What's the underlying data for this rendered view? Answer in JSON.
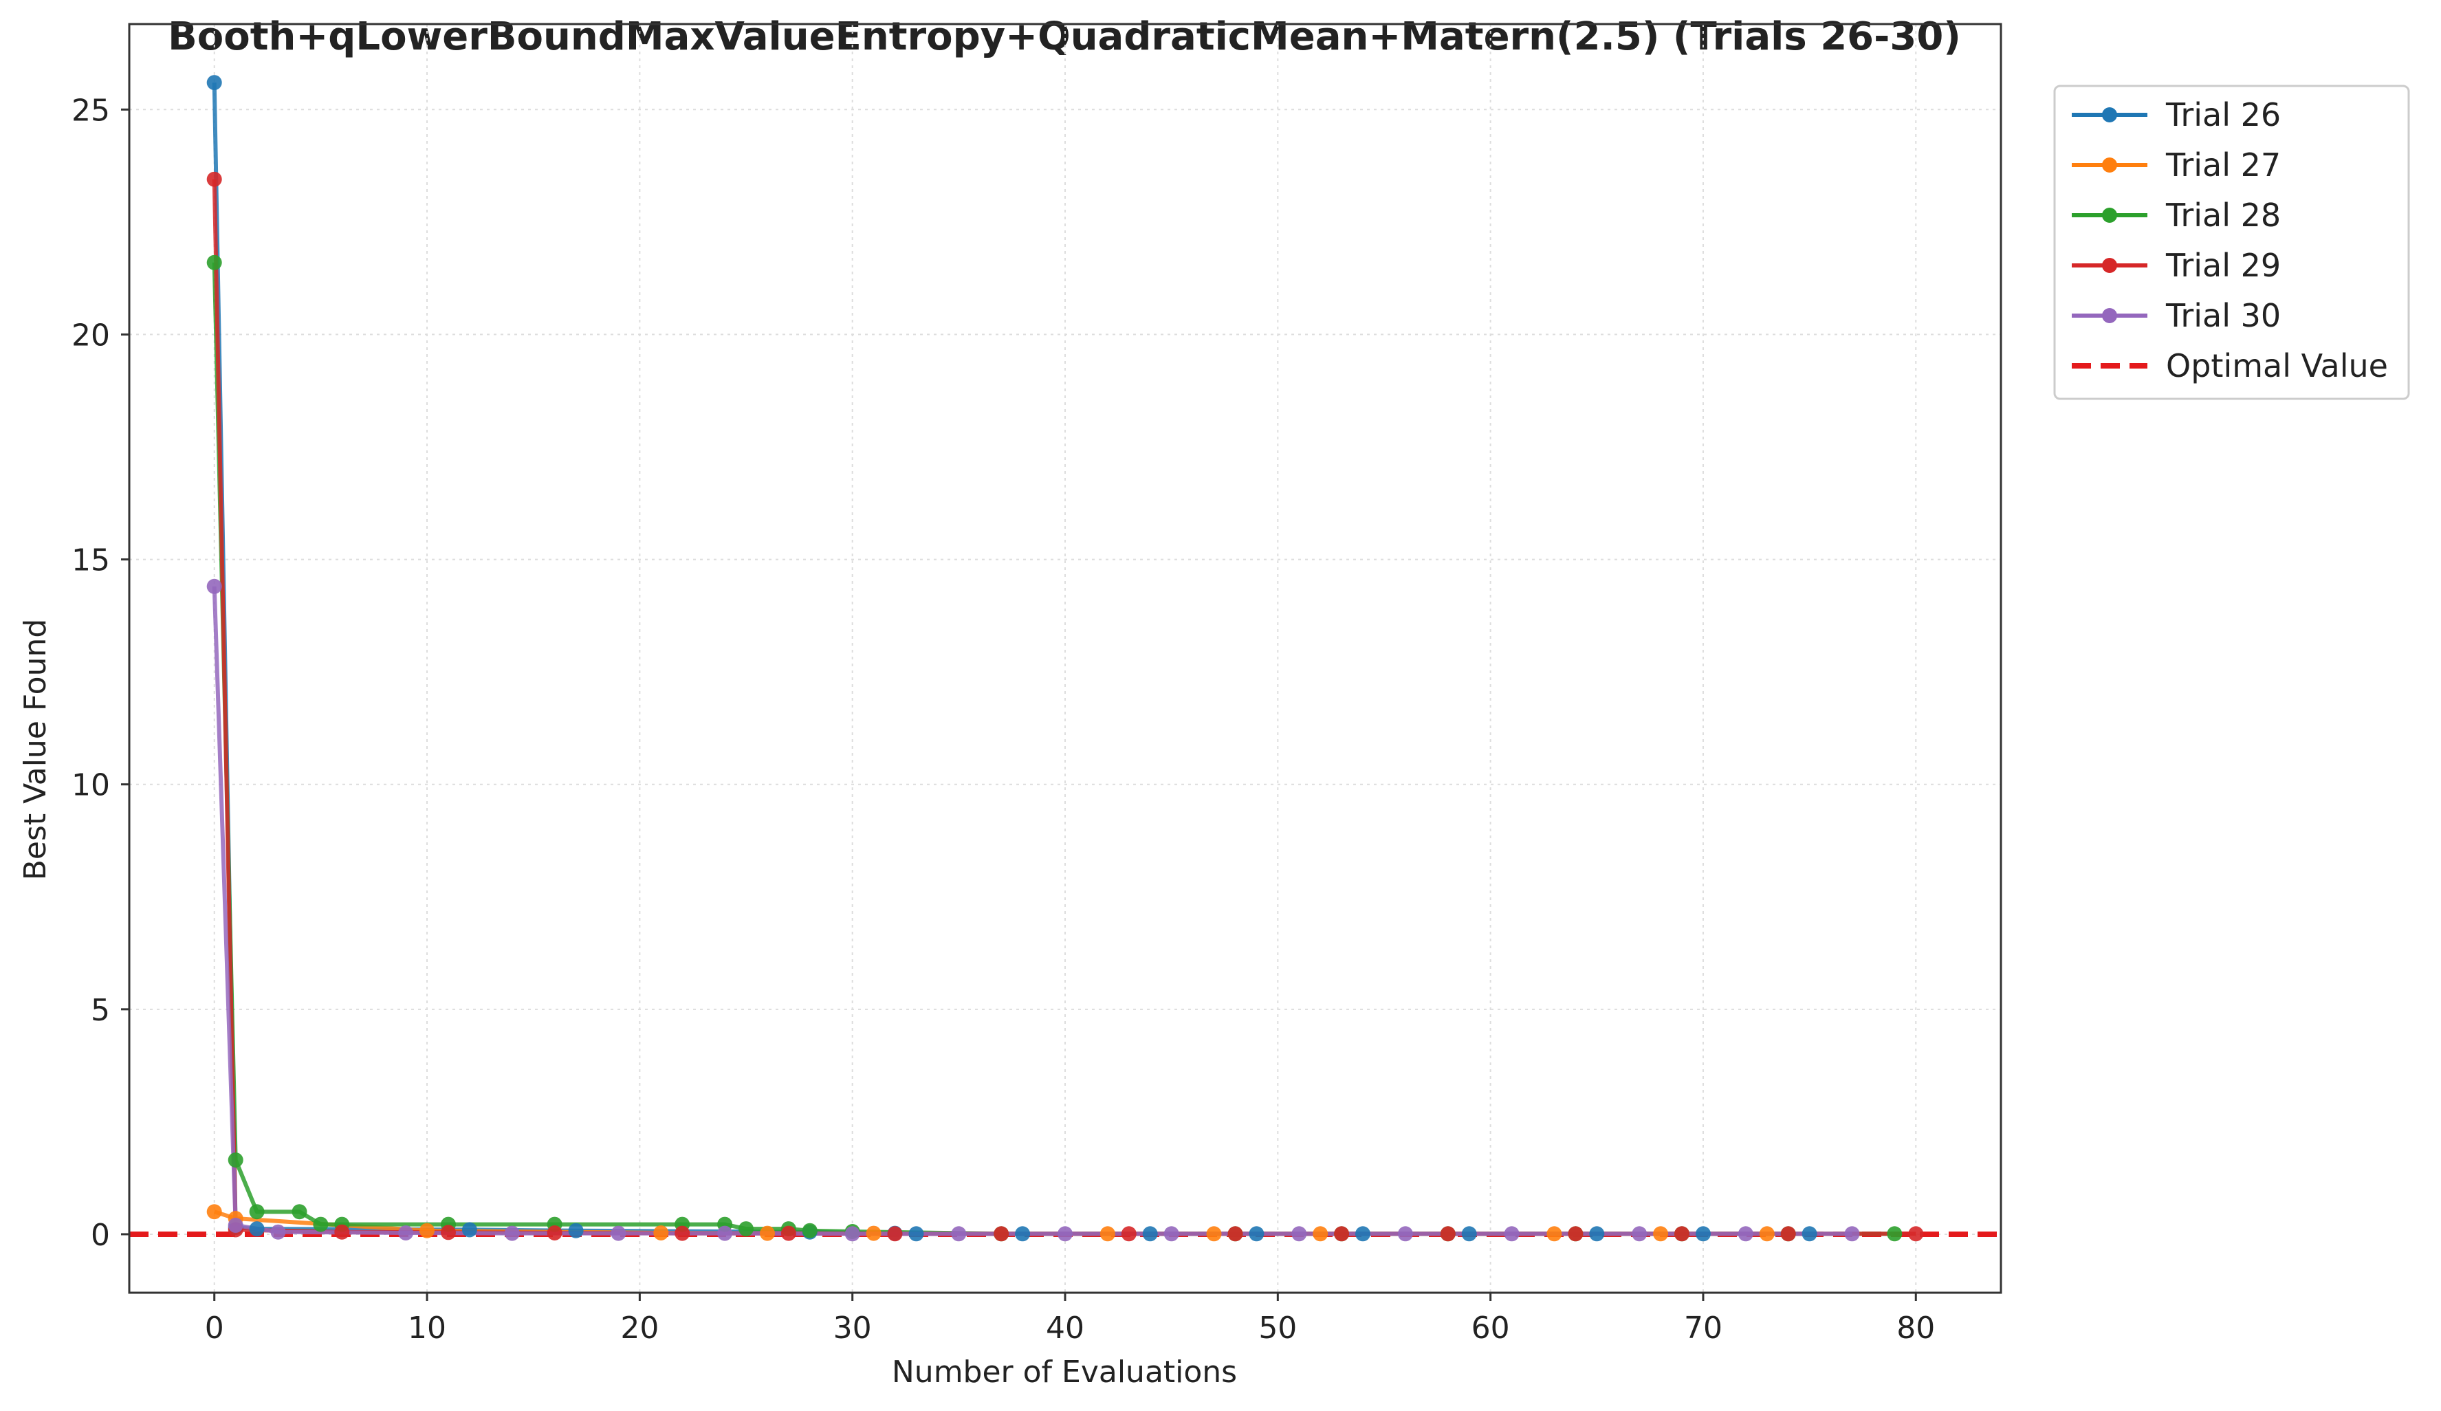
{
  "chart_data": {
    "type": "line",
    "title": "Booth+qLowerBoundMaxValueEntropy+QuadraticMean+Matern(2.5) (Trials 26-30)",
    "xlabel": "Number of Evaluations",
    "ylabel": "Best Value Found",
    "xlim": [
      -4,
      84
    ],
    "ylim": [
      -1.3,
      26.9
    ],
    "xticks": [
      0,
      10,
      20,
      30,
      40,
      50,
      60,
      70,
      80
    ],
    "yticks": [
      0,
      5,
      10,
      15,
      20,
      25
    ],
    "grid": true,
    "legend_position": "outside-top-right",
    "series": [
      {
        "name": "Trial 26",
        "color": "#1f77b4",
        "x": [
          0,
          1,
          2,
          12,
          17,
          28,
          32,
          33,
          38,
          44,
          49,
          54,
          59,
          65,
          70,
          75
        ],
        "y": [
          25.6,
          0.15,
          0.12,
          0.1,
          0.08,
          0.05,
          0.02,
          0.01,
          0.01,
          0.01,
          0.01,
          0.01,
          0.01,
          0.01,
          0.01,
          0.01
        ]
      },
      {
        "name": "Trial 27",
        "color": "#ff7f0e",
        "x": [
          0,
          1,
          10,
          21,
          26,
          31,
          42,
          47,
          52,
          63,
          68,
          73
        ],
        "y": [
          0.5,
          0.35,
          0.08,
          0.03,
          0.02,
          0.02,
          0.01,
          0.01,
          0.01,
          0.01,
          0.01,
          0.01
        ]
      },
      {
        "name": "Trial 28",
        "color": "#2ca02c",
        "x": [
          0,
          1,
          2,
          4,
          5,
          6,
          11,
          16,
          22,
          24,
          25,
          27,
          28,
          30,
          37,
          48,
          53,
          58,
          64,
          69,
          74,
          79
        ],
        "y": [
          21.6,
          1.65,
          0.5,
          0.5,
          0.22,
          0.22,
          0.22,
          0.22,
          0.22,
          0.22,
          0.12,
          0.12,
          0.08,
          0.06,
          0.01,
          0.01,
          0.01,
          0.01,
          0.01,
          0.01,
          0.01,
          0.01
        ]
      },
      {
        "name": "Trial 29",
        "color": "#d62728",
        "x": [
          0,
          1,
          6,
          11,
          16,
          22,
          27,
          32,
          37,
          43,
          48,
          53,
          58,
          64,
          69,
          74,
          80
        ],
        "y": [
          23.45,
          0.1,
          0.05,
          0.04,
          0.03,
          0.02,
          0.02,
          0.01,
          0.01,
          0.01,
          0.01,
          0.01,
          0.01,
          0.01,
          0.01,
          0.01,
          0.01
        ]
      },
      {
        "name": "Trial 30",
        "color": "#9467bd",
        "x": [
          0,
          1,
          3,
          9,
          14,
          19,
          24,
          30,
          35,
          40,
          45,
          51,
          56,
          61,
          67,
          72,
          77
        ],
        "y": [
          14.4,
          0.2,
          0.05,
          0.03,
          0.02,
          0.02,
          0.02,
          0.01,
          0.01,
          0.01,
          0.01,
          0.01,
          0.01,
          0.01,
          0.01,
          0.01,
          0.01
        ]
      }
    ],
    "reference_line": {
      "name": "Optimal Value",
      "y": 0,
      "color": "#e41a1c",
      "style": "dashed"
    }
  }
}
